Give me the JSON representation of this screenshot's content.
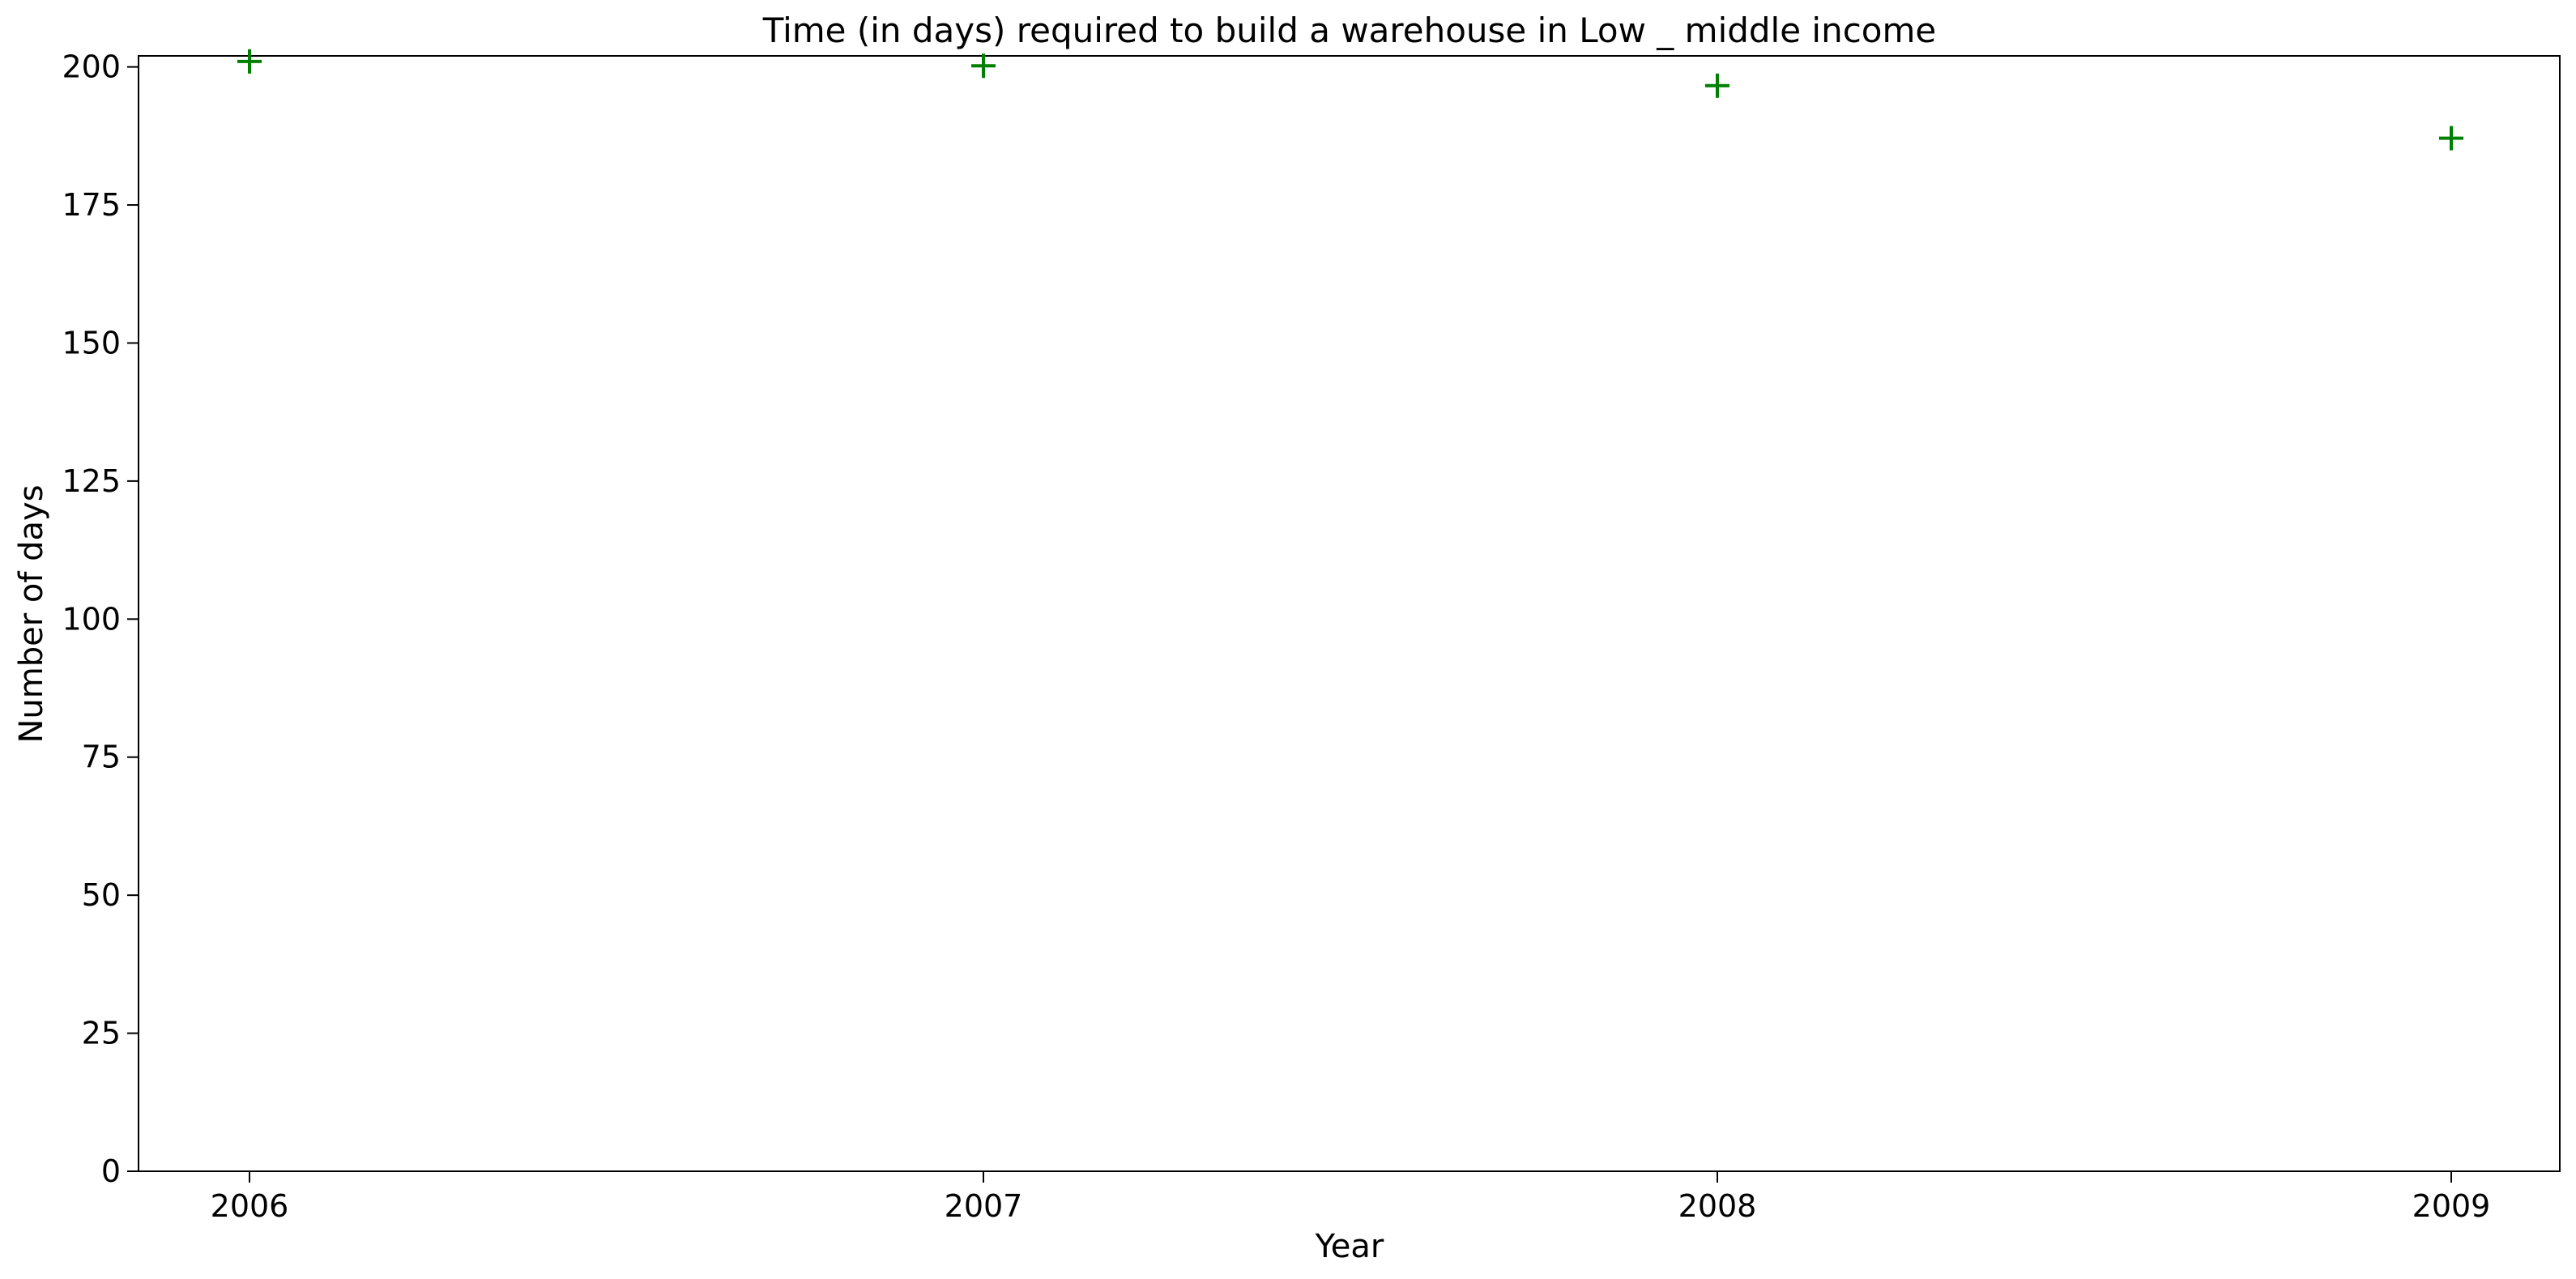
{
  "chart_data": {
    "type": "scatter",
    "title": "Time (in days) required to build a warehouse in Low _ middle income",
    "xlabel": "Year",
    "ylabel": "Number of days",
    "x": [
      "2006",
      "2007",
      "2008",
      "2009"
    ],
    "series": [
      {
        "values": [
          201.0,
          200.2,
          196.6,
          187.1
        ],
        "marker": "plus",
        "color": "#008000"
      }
    ],
    "ylim": [
      0,
      202
    ],
    "yticks": [
      0,
      25,
      50,
      75,
      100,
      125,
      150,
      175,
      200
    ],
    "xticks": [
      "2006",
      "2007",
      "2008",
      "2009"
    ],
    "grid": false,
    "legend": "none"
  }
}
